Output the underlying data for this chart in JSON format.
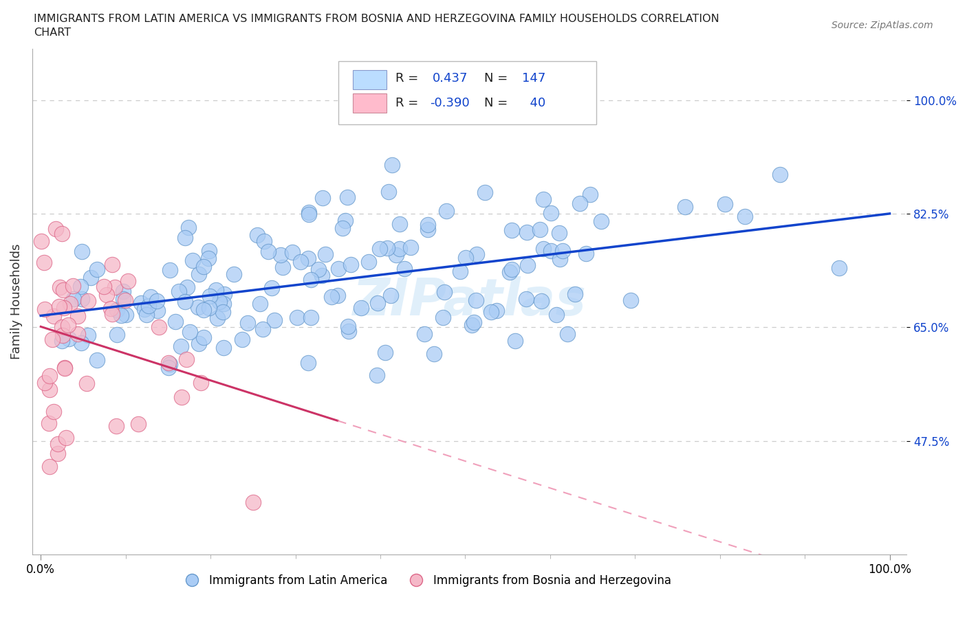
{
  "title_line1": "IMMIGRANTS FROM LATIN AMERICA VS IMMIGRANTS FROM BOSNIA AND HERZEGOVINA FAMILY HOUSEHOLDS CORRELATION",
  "title_line2": "CHART",
  "source": "Source: ZipAtlas.com",
  "ylabel": "Family Households",
  "x_min": 0.0,
  "x_max": 1.0,
  "y_min": 0.3,
  "y_max": 1.08,
  "yticks": [
    0.475,
    0.65,
    0.825,
    1.0
  ],
  "ytick_labels": [
    "47.5%",
    "65.0%",
    "82.5%",
    "100.0%"
  ],
  "xtick_labels": [
    "0.0%",
    "100.0%"
  ],
  "blue_fill": "#aaccf5",
  "blue_edge": "#6699cc",
  "blue_line_color": "#1144cc",
  "pink_fill": "#f5b8c8",
  "pink_edge": "#dd6688",
  "pink_line_solid": "#cc3366",
  "pink_line_dashed": "#f0a0bb",
  "blue_R": 0.437,
  "blue_N": 147,
  "pink_R": -0.39,
  "pink_N": 40,
  "watermark": "ZIPatlas",
  "grid_color": "#cccccc",
  "legend_fill_blue": "#bbddff",
  "legend_fill_pink": "#ffbbcc"
}
